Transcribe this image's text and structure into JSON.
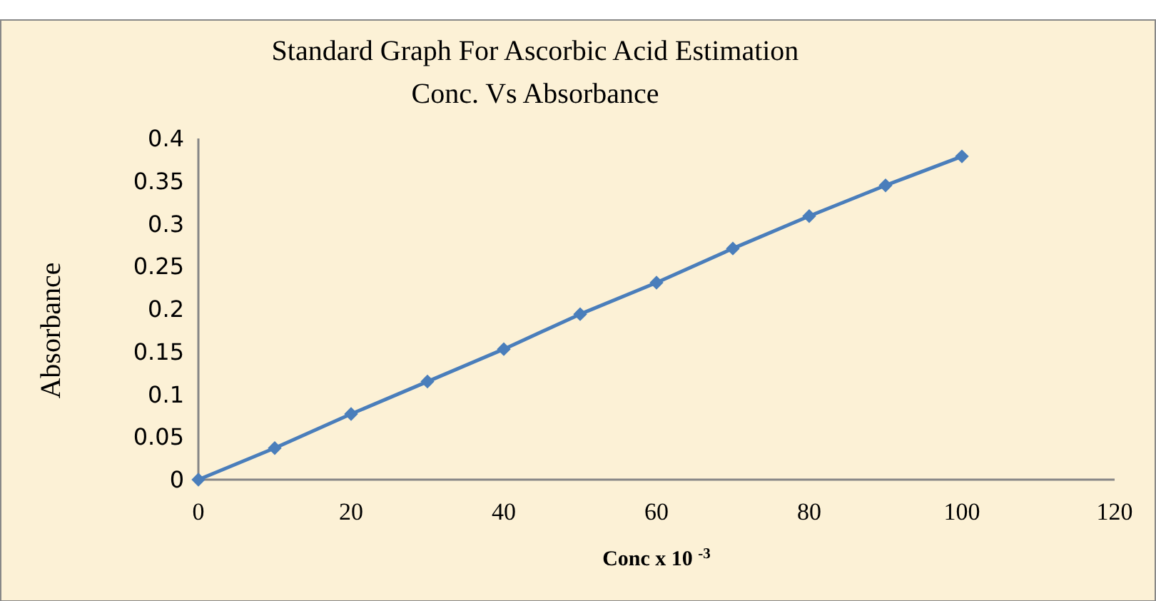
{
  "chart_data": {
    "type": "line",
    "title": "Standard Graph For Ascorbic Acid Estimation",
    "subtitle": "Conc. Vs Absorbance",
    "xlabel": "Conc x 10 $^{-3}$",
    "ylabel": "Absorbance",
    "x": [
      0,
      10,
      20,
      30,
      40,
      50,
      60,
      70,
      80,
      90,
      100
    ],
    "series": [
      {
        "color": "#4a7ebb",
        "values": [
          0,
          0.037,
          0.077,
          0.115,
          0.153,
          0.194,
          0.231,
          0.271,
          0.309,
          0.345,
          0.379
        ]
      }
    ],
    "xlim": [
      0,
      120
    ],
    "xticks": [
      0,
      20,
      40,
      60,
      80,
      100,
      120
    ],
    "ylim": [
      0,
      0.4
    ],
    "yticks": [
      0,
      0.05,
      0.1,
      0.15,
      0.2,
      0.25,
      0.3,
      0.35,
      0.4
    ],
    "marker": "diamond",
    "line_style": "solid"
  }
}
